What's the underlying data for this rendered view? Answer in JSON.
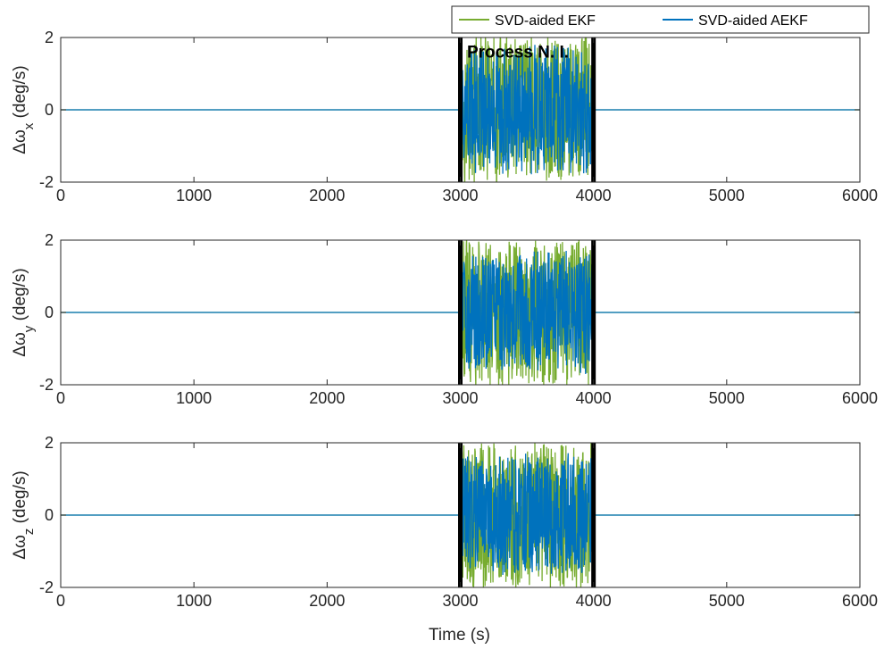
{
  "chart_data": {
    "type": "line",
    "x_label": "Time (s)",
    "x_lim": [
      0,
      6000
    ],
    "x_ticks": [
      0,
      1000,
      2000,
      3000,
      4000,
      5000,
      6000
    ],
    "y_lim": [
      -2,
      2
    ],
    "y_ticks": [
      -2,
      0,
      2
    ],
    "grid": false,
    "legend": {
      "position": "top-right",
      "entries": [
        {
          "name": "SVD-aided EKF",
          "color": "#77AC30"
        },
        {
          "name": "SVD-aided AEKF",
          "color": "#0072BD"
        }
      ]
    },
    "marker_lines": {
      "x": [
        3000,
        4000
      ],
      "color": "#000000"
    },
    "annotation": {
      "text": "Process N. I.",
      "x": 3050,
      "y": 1.45
    },
    "disturbance_interval": [
      3000,
      4000
    ],
    "subplots": [
      {
        "ylabel": "Δω_x (deg/s)",
        "ylabel_main": "Δω",
        "ylabel_sub": "x",
        "ylabel_unit": "(deg/s)",
        "series": [
          {
            "name": "SVD-aided EKF",
            "baseline": 0,
            "amplitude_in_interval": 2.0
          },
          {
            "name": "SVD-aided AEKF",
            "baseline": 0,
            "amplitude_in_interval": 1.7
          }
        ]
      },
      {
        "ylabel": "Δω_y (deg/s)",
        "ylabel_main": "Δω",
        "ylabel_sub": "y",
        "ylabel_unit": "(deg/s)",
        "series": [
          {
            "name": "SVD-aided EKF",
            "baseline": 0,
            "amplitude_in_interval": 2.0
          },
          {
            "name": "SVD-aided AEKF",
            "baseline": 0,
            "amplitude_in_interval": 1.6
          }
        ]
      },
      {
        "ylabel": "Δω_z (deg/s)",
        "ylabel_main": "Δω",
        "ylabel_sub": "z",
        "ylabel_unit": "(deg/s)",
        "series": [
          {
            "name": "SVD-aided EKF",
            "baseline": 0,
            "amplitude_in_interval": 2.0
          },
          {
            "name": "SVD-aided AEKF",
            "baseline": 0,
            "amplitude_in_interval": 1.6
          }
        ]
      }
    ]
  }
}
